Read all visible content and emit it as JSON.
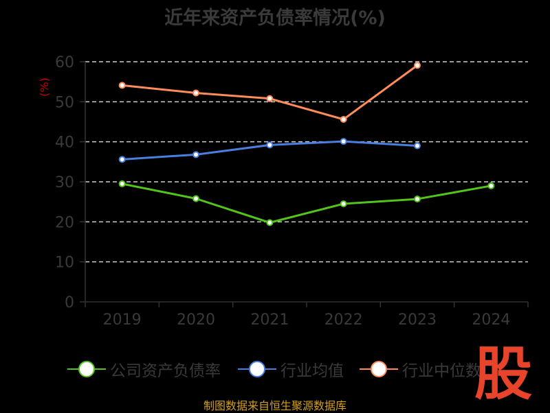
{
  "chart_data": {
    "type": "line",
    "title": "近年来资产负债率情况(%)",
    "ylabel": "(%)",
    "xlabel": "",
    "categories": [
      "2019",
      "2020",
      "2021",
      "2022",
      "2023",
      "2024"
    ],
    "ylim": [
      0,
      60
    ],
    "yticks": [
      0,
      10,
      20,
      30,
      40,
      50,
      60
    ],
    "grid": true,
    "legend_position": "bottom",
    "series": [
      {
        "name": "公司资产负债率",
        "color": "#52c41a",
        "values": [
          29.5,
          25.8,
          19.8,
          24.5,
          25.7,
          29.0
        ]
      },
      {
        "name": "行业均值",
        "color": "#4a7fe0",
        "values": [
          35.6,
          36.8,
          39.2,
          40.1,
          39.0,
          null
        ]
      },
      {
        "name": "行业中位数",
        "color": "#ff8c5a",
        "values": [
          54.1,
          52.2,
          50.8,
          45.6,
          59.1,
          null
        ]
      }
    ]
  },
  "legend": {
    "items": [
      {
        "label": "公司资产负债率",
        "color": "#52c41a"
      },
      {
        "label": "行业均值",
        "color": "#4a7fe0"
      },
      {
        "label": "行业中位数",
        "color": "#ff8c5a"
      }
    ]
  },
  "source_note": "制图数据来自恒生聚源数据库",
  "watermark": "股"
}
